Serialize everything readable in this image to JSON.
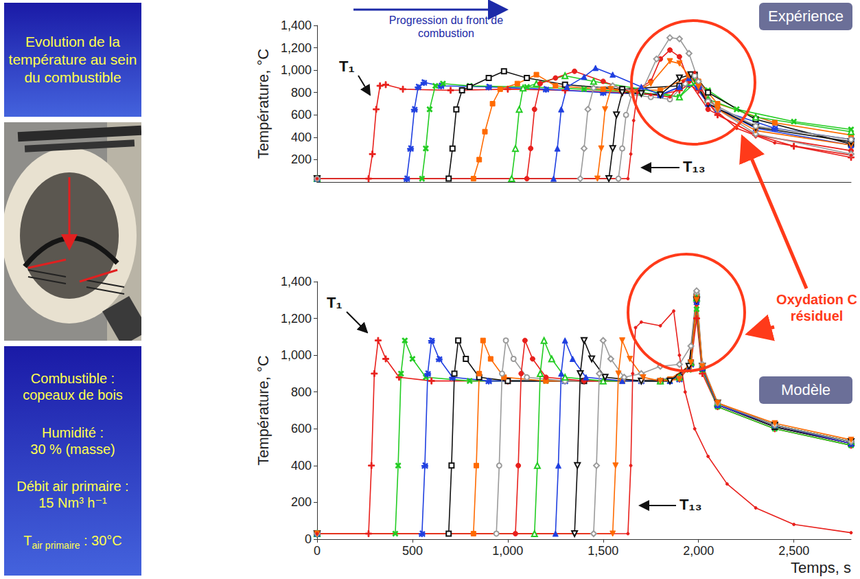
{
  "chart_data": [
    {
      "type": "line",
      "panel_label": "Expérience",
      "y_label": "Température, °C",
      "xlim": [
        0,
        2800
      ],
      "ylim": [
        0,
        1400
      ],
      "yticks": [
        200,
        400,
        600,
        800,
        1000,
        1200,
        1400
      ],
      "tick_labels": "y",
      "grid": false,
      "annotations": {
        "front": "Progression du front de combustion",
        "first": "T₁",
        "last": "T₁₃"
      },
      "series": [
        {
          "color": "#e8201c",
          "marker": "plus",
          "x": [
            0,
            270,
            290,
            310,
            330,
            360,
            450,
            700,
            1000,
            1300,
            1600,
            1800,
            1900,
            1950,
            2000,
            2100,
            2300,
            2500,
            2800
          ],
          "values": [
            30,
            30,
            250,
            650,
            860,
            870,
            830,
            820,
            830,
            820,
            800,
            780,
            820,
            870,
            820,
            600,
            420,
            320,
            220
          ]
        },
        {
          "color": "#1f3fe0",
          "marker": "star",
          "x": [
            0,
            470,
            490,
            510,
            530,
            560,
            650,
            900,
            1200,
            1500,
            1800,
            1950,
            2000,
            2100,
            2400,
            2800
          ],
          "values": [
            30,
            30,
            300,
            650,
            850,
            890,
            860,
            850,
            830,
            800,
            780,
            880,
            850,
            650,
            480,
            380
          ]
        },
        {
          "color": "#22cc22",
          "marker": "cross",
          "x": [
            0,
            550,
            570,
            590,
            620,
            660,
            800,
            1100,
            1400,
            1700,
            1900,
            1990,
            2050,
            2200,
            2500,
            2800
          ],
          "values": [
            30,
            30,
            300,
            650,
            860,
            880,
            860,
            850,
            830,
            800,
            760,
            900,
            820,
            650,
            540,
            470
          ]
        },
        {
          "color": "#111111",
          "marker": "square_open",
          "x": [
            0,
            690,
            710,
            730,
            760,
            800,
            900,
            980,
            1100,
            1300,
            1600,
            1900,
            1980,
            2050,
            2300,
            2800
          ],
          "values": [
            30,
            30,
            300,
            650,
            820,
            850,
            930,
            990,
            930,
            870,
            830,
            860,
            960,
            800,
            560,
            340
          ]
        },
        {
          "color": "#ff6a00",
          "marker": "square",
          "x": [
            0,
            820,
            850,
            880,
            920,
            960,
            1050,
            1150,
            1250,
            1500,
            1800,
            1950,
            2000,
            2100,
            2400,
            2800
          ],
          "values": [
            30,
            30,
            200,
            450,
            700,
            830,
            880,
            960,
            860,
            830,
            820,
            940,
            900,
            700,
            530,
            420
          ]
        },
        {
          "color": "#22cc22",
          "marker": "triangle_open",
          "x": [
            0,
            1020,
            1040,
            1060,
            1080,
            1150,
            1300,
            1450,
            1700,
            1900,
            1960,
            2050,
            2300,
            2800
          ],
          "values": [
            30,
            30,
            300,
            650,
            840,
            880,
            950,
            900,
            830,
            760,
            890,
            740,
            580,
            450
          ]
        },
        {
          "color": "#e8201c",
          "marker": "circle",
          "x": [
            0,
            1100,
            1120,
            1140,
            1170,
            1250,
            1350,
            1500,
            1650,
            1750,
            1800,
            1850,
            1900,
            1950,
            2050,
            2300,
            2800
          ],
          "values": [
            30,
            30,
            300,
            650,
            880,
            930,
            990,
            900,
            800,
            900,
            1100,
            1180,
            1120,
            900,
            650,
            420,
            280
          ]
        },
        {
          "color": "#1f3fe0",
          "marker": "triangle",
          "x": [
            0,
            1240,
            1260,
            1280,
            1310,
            1400,
            1460,
            1550,
            1700,
            1800,
            1900,
            1950,
            2050,
            2300,
            2800
          ],
          "values": [
            30,
            30,
            300,
            650,
            850,
            940,
            1020,
            960,
            850,
            780,
            850,
            930,
            700,
            480,
            330
          ]
        },
        {
          "color": "#9a9a9a",
          "marker": "diamond_open",
          "x": [
            0,
            1380,
            1400,
            1420,
            1450,
            1550,
            1700,
            1780,
            1850,
            1900,
            1950,
            2000,
            2100,
            2300,
            2800
          ],
          "values": [
            30,
            30,
            300,
            650,
            840,
            860,
            800,
            1100,
            1290,
            1280,
            1150,
            900,
            650,
            430,
            250
          ]
        },
        {
          "color": "#ff6a00",
          "marker": "triangle_down",
          "x": [
            0,
            1470,
            1490,
            1510,
            1540,
            1650,
            1750,
            1850,
            1900,
            1950,
            2000,
            2100,
            2300,
            2800
          ],
          "values": [
            30,
            30,
            300,
            650,
            830,
            790,
            880,
            1080,
            1060,
            950,
            850,
            650,
            460,
            330
          ]
        },
        {
          "color": "#111111",
          "marker": "triangle_down_open",
          "x": [
            0,
            1530,
            1550,
            1570,
            1600,
            1700,
            1800,
            1900,
            1960,
            2050,
            2300,
            2800
          ],
          "values": [
            30,
            30,
            300,
            600,
            800,
            790,
            780,
            930,
            960,
            700,
            490,
            360
          ]
        },
        {
          "color": "#9a9a9a",
          "marker": "circle_open",
          "x": [
            0,
            1580,
            1600,
            1620,
            1650,
            1750,
            1850,
            1930,
            1980,
            2050,
            2300,
            2800
          ],
          "values": [
            30,
            30,
            300,
            600,
            780,
            760,
            740,
            880,
            950,
            720,
            500,
            380
          ]
        },
        {
          "color": "#e8201c",
          "marker": "dot",
          "x": [
            0,
            1630,
            1645,
            1660,
            1680,
            1750,
            1850,
            1920,
            1980,
            2050,
            2200,
            2400,
            2800
          ],
          "values": [
            30,
            30,
            250,
            550,
            800,
            780,
            760,
            900,
            980,
            700,
            480,
            350,
            240
          ]
        }
      ]
    },
    {
      "type": "line",
      "panel_label": "Modèle",
      "x_label": "Temps, s",
      "y_label": "Température, °C",
      "xlim": [
        0,
        2800
      ],
      "xticks": [
        0,
        500,
        1000,
        1500,
        2000,
        2500
      ],
      "ylim": [
        0,
        1400
      ],
      "yticks": [
        0,
        200,
        400,
        600,
        800,
        1000,
        1200,
        1400
      ],
      "grid": false,
      "annotations": {
        "first": "T₁",
        "last": "T₁₃"
      },
      "series": [
        {
          "color": "#e8201c",
          "marker": "plus",
          "x": [
            0,
            270,
            285,
            300,
            320,
            360,
            430,
            600,
            1000,
            1400,
            1800,
            1900,
            1960,
            1990,
            2020,
            2100,
            2400,
            2800
          ],
          "values": [
            30,
            30,
            400,
            900,
            1080,
            980,
            880,
            860,
            860,
            860,
            860,
            880,
            950,
            1200,
            900,
            720,
            600,
            510
          ]
        },
        {
          "color": "#22cc22",
          "marker": "cross",
          "x": [
            0,
            410,
            425,
            440,
            460,
            500,
            570,
            800,
            1200,
            1600,
            1850,
            1950,
            1990,
            2020,
            2100,
            2400,
            2800
          ],
          "values": [
            30,
            30,
            400,
            900,
            1080,
            980,
            880,
            860,
            860,
            860,
            860,
            920,
            1250,
            920,
            720,
            600,
            510
          ]
        },
        {
          "color": "#1f3fe0",
          "marker": "star",
          "x": [
            0,
            550,
            565,
            580,
            600,
            640,
            710,
            900,
            1300,
            1700,
            1900,
            1960,
            1990,
            2020,
            2100,
            2400,
            2800
          ],
          "values": [
            30,
            30,
            400,
            900,
            1080,
            980,
            880,
            860,
            860,
            860,
            870,
            950,
            1300,
            930,
            730,
            610,
            520
          ]
        },
        {
          "color": "#111111",
          "marker": "square_open",
          "x": [
            0,
            690,
            705,
            720,
            740,
            780,
            850,
            1000,
            1400,
            1800,
            1900,
            1960,
            1990,
            2020,
            2100,
            2400,
            2800
          ],
          "values": [
            30,
            30,
            400,
            900,
            1080,
            980,
            880,
            860,
            860,
            860,
            880,
            960,
            1320,
            930,
            730,
            610,
            520
          ]
        },
        {
          "color": "#ff6a00",
          "marker": "square",
          "x": [
            0,
            820,
            835,
            850,
            870,
            910,
            980,
            1200,
            1600,
            1850,
            1950,
            1990,
            2020,
            2100,
            2400,
            2800
          ],
          "values": [
            30,
            30,
            400,
            900,
            1080,
            980,
            880,
            860,
            860,
            870,
            940,
            1330,
            940,
            740,
            620,
            530
          ]
        },
        {
          "color": "#9a9a9a",
          "marker": "circle_open",
          "x": [
            0,
            940,
            955,
            970,
            990,
            1030,
            1100,
            1300,
            1700,
            1900,
            1960,
            1990,
            2020,
            2100,
            2400,
            2800
          ],
          "values": [
            30,
            30,
            400,
            900,
            1080,
            980,
            880,
            860,
            860,
            880,
            960,
            1340,
            940,
            740,
            620,
            530
          ]
        },
        {
          "color": "#e8201c",
          "marker": "circle",
          "x": [
            0,
            1040,
            1055,
            1070,
            1090,
            1130,
            1200,
            1400,
            1800,
            1900,
            1960,
            1990,
            2020,
            2100,
            2400,
            2800
          ],
          "values": [
            30,
            30,
            400,
            900,
            1080,
            980,
            880,
            860,
            860,
            870,
            950,
            1280,
            930,
            730,
            620,
            520
          ]
        },
        {
          "color": "#22cc22",
          "marker": "triangle_open",
          "x": [
            0,
            1140,
            1155,
            1170,
            1190,
            1230,
            1300,
            1500,
            1800,
            1900,
            1960,
            1990,
            2020,
            2100,
            2400,
            2800
          ],
          "values": [
            30,
            30,
            400,
            900,
            1080,
            980,
            880,
            860,
            860,
            880,
            960,
            1310,
            940,
            740,
            620,
            530
          ]
        },
        {
          "color": "#1f3fe0",
          "marker": "triangle",
          "x": [
            0,
            1250,
            1265,
            1280,
            1300,
            1340,
            1410,
            1600,
            1850,
            1950,
            1990,
            2020,
            2100,
            2400,
            2800
          ],
          "values": [
            30,
            30,
            400,
            900,
            1080,
            980,
            880,
            860,
            860,
            930,
            1290,
            930,
            730,
            620,
            520
          ]
        },
        {
          "color": "#111111",
          "marker": "triangle_down_open",
          "x": [
            0,
            1350,
            1365,
            1380,
            1400,
            1440,
            1510,
            1700,
            1850,
            1950,
            1990,
            2020,
            2100,
            2400,
            2800
          ],
          "values": [
            30,
            30,
            400,
            900,
            1080,
            980,
            880,
            860,
            860,
            940,
            1300,
            940,
            740,
            620,
            530
          ]
        },
        {
          "color": "#9a9a9a",
          "marker": "diamond_open",
          "x": [
            0,
            1450,
            1465,
            1480,
            1500,
            1540,
            1610,
            1700,
            1800,
            1900,
            1960,
            1990,
            2020,
            2100,
            2400,
            2800
          ],
          "values": [
            30,
            30,
            400,
            900,
            1080,
            980,
            880,
            900,
            940,
            950,
            1050,
            1350,
            950,
            740,
            620,
            530
          ]
        },
        {
          "color": "#ff6a00",
          "marker": "triangle_down",
          "x": [
            0,
            1550,
            1565,
            1580,
            1600,
            1640,
            1710,
            1800,
            1900,
            1960,
            1990,
            2020,
            2100,
            2400,
            2800
          ],
          "values": [
            30,
            30,
            400,
            900,
            1080,
            980,
            880,
            860,
            870,
            960,
            1300,
            940,
            740,
            630,
            540
          ]
        },
        {
          "color": "#e8201c",
          "marker": "dot",
          "x": [
            0,
            1630,
            1645,
            1655,
            1670,
            1700,
            1800,
            1870,
            1900,
            1930,
            1980,
            2050,
            2150,
            2300,
            2500,
            2800
          ],
          "values": [
            30,
            30,
            400,
            900,
            1150,
            1180,
            1160,
            1240,
            1000,
            800,
            600,
            450,
            300,
            170,
            80,
            35
          ]
        }
      ]
    }
  ],
  "slide": {
    "heading": "Evolution de la température au sein du combustible",
    "conditions": [
      [
        "Combustible :",
        "copeaux de bois"
      ],
      [
        "Humidité :",
        "30 % (masse)"
      ],
      [
        "Débit air primaire :",
        "15 Nm³ h⁻¹"
      ]
    ],
    "air_temperature": {
      "symbol": "T",
      "subscript": "air primaire",
      "text": " : 30°C"
    },
    "callout": "Oxydation C résiduel"
  }
}
